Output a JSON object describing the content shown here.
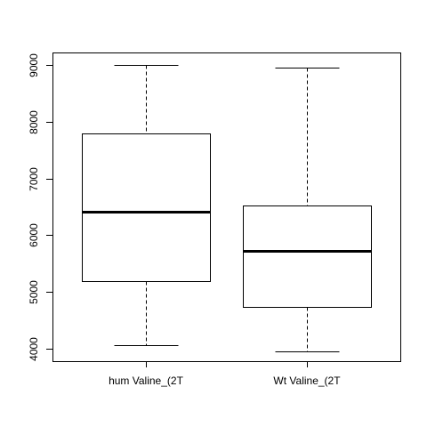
{
  "chart_data": {
    "type": "boxplot",
    "title": "",
    "xlabel": "",
    "ylabel": "",
    "ylim": [
      3780,
      9220
    ],
    "y_ticks": [
      4000,
      5000,
      6000,
      7000,
      8000,
      9000
    ],
    "y_tick_labels": [
      "4000",
      "5000",
      "6000",
      "7000",
      "8000",
      "9000"
    ],
    "categories": [
      "hum Valine_(2T",
      "Wt Valine_(2T"
    ],
    "series": [
      {
        "name": "hum Valine_(2T",
        "min": 4070,
        "q1": 5190,
        "median": 6420,
        "q3": 7800,
        "max": 9000
      },
      {
        "name": "Wt Valine_(2T",
        "min": 3960,
        "q1": 4740,
        "median": 5730,
        "q3": 6530,
        "max": 8950
      }
    ],
    "grid": false,
    "legend": "none",
    "colors": {
      "box_fill": "#ffffff",
      "stroke": "#000000",
      "background": "#ffffff"
    }
  }
}
